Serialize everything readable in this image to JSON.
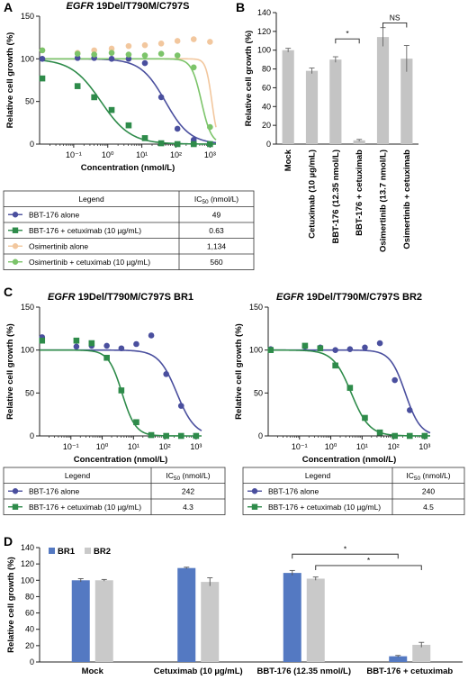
{
  "panels": {
    "A": {
      "label": "A",
      "title_prefix": "EGFR",
      "title_rest": " 19Del/T790M/C797S"
    },
    "B": {
      "label": "B"
    },
    "C": {
      "label": "C"
    },
    "D": {
      "label": "D"
    }
  },
  "colors": {
    "bbt176": "#4a4f9e",
    "bbt176_cetux": "#2e8b4a",
    "osimertinib": "#f2c79e",
    "osim_cetux": "#7cc46a",
    "bar_gray": "#c4c4c4",
    "bar_blue": "#5479c2",
    "bar_lightgray": "#c9c9c9"
  },
  "chart_data": [
    {
      "type": "scatter",
      "panel": "A",
      "title": "EGFR 19Del/T790M/C797S",
      "xlabel": "Concentration (nmol/L)",
      "ylabel": "Relative cell growth (%)",
      "xscale": "log",
      "xlim": [
        0.01,
        1500
      ],
      "ylim": [
        0,
        150
      ],
      "x_ticks": [
        "10⁻¹",
        "10⁰",
        "10¹",
        "10²",
        "10³"
      ],
      "y_ticks": [
        "0",
        "50",
        "100",
        "150"
      ],
      "series": [
        {
          "key": "bbt176",
          "marker": "circle",
          "ic50": 49,
          "top": 100,
          "bottom": 0,
          "hill": 1.2,
          "x": [
            0.012,
            0.13,
            0.4,
            1.3,
            4.1,
            12.3,
            37,
            111,
            333,
            1000
          ],
          "y": [
            100,
            101,
            101,
            100,
            100,
            95,
            55,
            18,
            5,
            0
          ]
        },
        {
          "key": "bbt176_cetux",
          "marker": "square",
          "ic50": 0.63,
          "top": 100,
          "bottom": 0,
          "hill": 1.0,
          "x": [
            0.012,
            0.13,
            0.4,
            1.3,
            4.1,
            12.3,
            37,
            111,
            333,
            1000
          ],
          "y": [
            77,
            68,
            55,
            40,
            22,
            7,
            1,
            0,
            0,
            0
          ]
        },
        {
          "key": "osimertinib",
          "marker": "circle",
          "ic50": 1134,
          "top": 100,
          "bottom": 0,
          "hill": 5,
          "x": [
            0.012,
            0.13,
            0.4,
            1.3,
            4.1,
            12.3,
            37,
            111,
            333,
            1000
          ],
          "y": [
            110,
            107,
            110,
            112,
            115,
            116,
            118,
            121,
            123,
            120
          ]
        },
        {
          "key": "osim_cetux",
          "marker": "circle",
          "ic50": 560,
          "top": 100,
          "bottom": 0,
          "hill": 3,
          "x": [
            0.012,
            0.13,
            0.4,
            1.3,
            4.1,
            12.3,
            37,
            111,
            333,
            1000
          ],
          "y": [
            110,
            106,
            105,
            107,
            105,
            104,
            106,
            104,
            90,
            20
          ]
        }
      ]
    },
    {
      "type": "bar",
      "panel": "B",
      "ylabel": "Relative cell growth (%)",
      "ylim": [
        0,
        140
      ],
      "y_ticks": [
        "0",
        "20",
        "40",
        "60",
        "80",
        "100",
        "120",
        "140"
      ],
      "categories": [
        "Mock",
        "Cetuximab (10 µg/mL)",
        "BBT-176 (12.35 nmol/L)",
        "BBT-176 + cetuximab",
        "Osimertinib (13.7 nmol/L)",
        "Osimertinib + cetuximab"
      ],
      "values": [
        100,
        78,
        90,
        4,
        114,
        91
      ],
      "errors": [
        2,
        3,
        3,
        1,
        10,
        14
      ],
      "annotations": [
        {
          "text": "*",
          "from": 2,
          "to": 3,
          "y": 112
        },
        {
          "text": "NS",
          "from": 4,
          "to": 5,
          "y": 129
        }
      ]
    },
    {
      "type": "scatter",
      "panel": "C1",
      "title": "EGFR 19Del/T790M/C797S BR1",
      "xlabel": "Concentration (nmol/L)",
      "ylabel": "Relative cell growth (%)",
      "xscale": "log",
      "xlim": [
        0.01,
        1500
      ],
      "ylim": [
        0,
        150
      ],
      "x_ticks": [
        "10⁻¹",
        "10⁰",
        "10¹",
        "10²",
        "10³"
      ],
      "y_ticks": [
        "0",
        "50",
        "100",
        "150"
      ],
      "series": [
        {
          "key": "bbt176",
          "marker": "circle",
          "ic50": 242,
          "top": 100,
          "bottom": 0,
          "hill": 1.5,
          "x": [
            0.012,
            0.15,
            0.46,
            1.4,
            4.1,
            12.3,
            37,
            111,
            333,
            1000
          ],
          "y": [
            115,
            104,
            105,
            105,
            102,
            107,
            117,
            72,
            35,
            0
          ]
        },
        {
          "key": "bbt176_cetux",
          "marker": "square",
          "ic50": 4.3,
          "top": 100,
          "bottom": 0,
          "hill": 2,
          "x": [
            0.012,
            0.15,
            0.46,
            1.4,
            4.1,
            12.3,
            37,
            111,
            333,
            1000
          ],
          "y": [
            111,
            111,
            108,
            91,
            53,
            16,
            1,
            0,
            0,
            0
          ]
        }
      ]
    },
    {
      "type": "scatter",
      "panel": "C2",
      "title": "EGFR 19Del/T790M/C797S BR2",
      "xlabel": "Concentration (nmol/L)",
      "ylabel": "Relative cell growth (%)",
      "xscale": "log",
      "xlim": [
        0.01,
        1500
      ],
      "ylim": [
        0,
        150
      ],
      "x_ticks": [
        "10⁻¹",
        "10⁰",
        "10¹",
        "10²",
        "10³"
      ],
      "y_ticks": [
        "0",
        "50",
        "100",
        "150"
      ],
      "series": [
        {
          "key": "bbt176",
          "marker": "circle",
          "ic50": 240,
          "top": 100,
          "bottom": 0,
          "hill": 1.8,
          "x": [
            0.012,
            0.15,
            0.46,
            1.4,
            4.1,
            12.3,
            37,
            111,
            333,
            1000
          ],
          "y": [
            101,
            104,
            103,
            100,
            101,
            103,
            108,
            65,
            30,
            0
          ]
        },
        {
          "key": "bbt176_cetux",
          "marker": "square",
          "ic50": 4.5,
          "top": 100,
          "bottom": 0,
          "hill": 1.5,
          "x": [
            0.012,
            0.15,
            0.46,
            1.4,
            4.1,
            12.3,
            37,
            111,
            333,
            1000
          ],
          "y": [
            100,
            105,
            102,
            82,
            56,
            21,
            4,
            0,
            0,
            0
          ]
        }
      ]
    },
    {
      "type": "bar",
      "panel": "D",
      "ylabel": "Relative cell growth (%)",
      "ylim": [
        0,
        140
      ],
      "y_ticks": [
        "0",
        "20",
        "40",
        "60",
        "80",
        "100",
        "120",
        "140"
      ],
      "categories": [
        "Mock",
        "Cetuximab (10 µg/mL)",
        "BBT-176 (12.35 nmol/L)",
        "BBT-176 + cetuximab"
      ],
      "series": [
        {
          "name": "BR1",
          "key": "bar_blue",
          "values": [
            100,
            115,
            109,
            7
          ],
          "errors": [
            2,
            1,
            3,
            1
          ]
        },
        {
          "name": "BR2",
          "key": "bar_lightgray",
          "values": [
            100,
            98,
            102,
            21
          ],
          "errors": [
            1,
            5,
            2,
            3
          ]
        }
      ],
      "annotations": [
        {
          "text": "*",
          "from_cat": 2,
          "from_s": 0,
          "to_cat": 3,
          "to_s": 0,
          "y": 132
        },
        {
          "text": "*",
          "from_cat": 2,
          "from_s": 1,
          "to_cat": 3,
          "to_s": 1,
          "y": 118
        }
      ]
    }
  ],
  "tables": {
    "A": {
      "header": [
        "Legend",
        "IC50 (nmol/L)"
      ],
      "rows": [
        {
          "key": "bbt176",
          "marker": "circle",
          "label": "BBT-176 alone",
          "value": "49"
        },
        {
          "key": "bbt176_cetux",
          "marker": "square",
          "label": "BBT-176 + cetuximab (10 µg/mL)",
          "value": "0.63"
        },
        {
          "key": "osimertinib",
          "marker": "circle",
          "label": "Osimertinib alone",
          "value": "1,134"
        },
        {
          "key": "osim_cetux",
          "marker": "circle",
          "label": "Osimertinib + cetuximab (10 µg/mL)",
          "value": "560"
        }
      ]
    },
    "C1": {
      "header": [
        "Legend",
        "IC50 (nmol/L)"
      ],
      "rows": [
        {
          "key": "bbt176",
          "marker": "circle",
          "label": "BBT-176 alone",
          "value": "242"
        },
        {
          "key": "bbt176_cetux",
          "marker": "square",
          "label": "BBT-176 + cetuximab (10 µg/mL)",
          "value": "4.3"
        }
      ]
    },
    "C2": {
      "header": [
        "Legend",
        "IC50 (nmol/L)"
      ],
      "rows": [
        {
          "key": "bbt176",
          "marker": "circle",
          "label": "BBT-176 alone",
          "value": "240"
        },
        {
          "key": "bbt176_cetux",
          "marker": "square",
          "label": "BBT-176 + cetuximab (10 µg/mL)",
          "value": "4.5"
        }
      ]
    }
  }
}
